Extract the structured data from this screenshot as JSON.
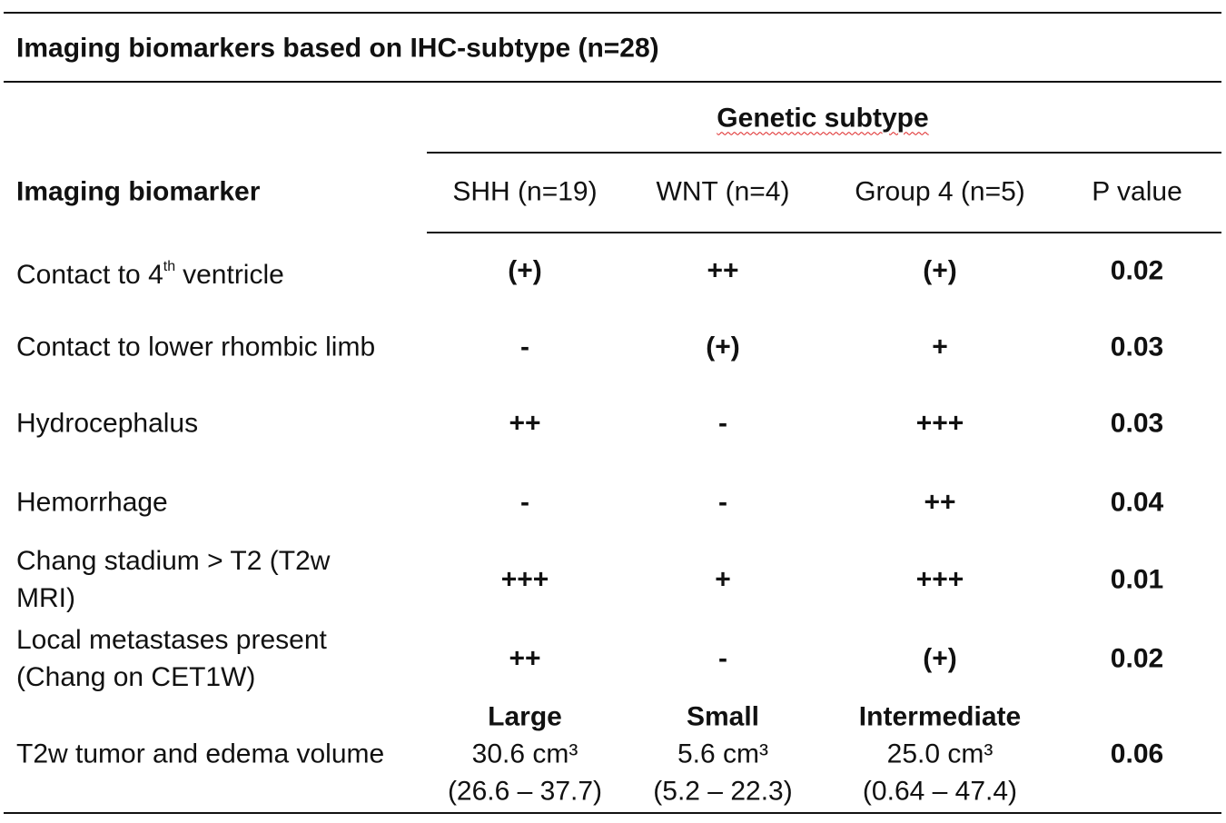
{
  "title": "Imaging biomarkers based on IHC-subtype (n=28)",
  "group_header": "Genetic subtype",
  "columns": [
    "Imaging biomarker",
    "SHH (n=19)",
    "WNT (n=4)",
    "Group 4 (n=5)",
    "P value"
  ],
  "rows": [
    {
      "label": [
        "Contact to 4"
      ],
      "label_sup": "th",
      "label_after": "ventricle",
      "cells": [
        "(+)",
        "++",
        "(+)",
        "0.02"
      ]
    },
    {
      "label": [
        "Contact to lower rhombic limb"
      ],
      "cells": [
        "-",
        "(+)",
        "+",
        "0.03"
      ]
    },
    {
      "label": [
        "Hydrocephalus"
      ],
      "cells": [
        "++",
        "-",
        "+++",
        "0.03"
      ]
    },
    {
      "label": [
        "Hemorrhage"
      ],
      "cells": [
        "-",
        "-",
        "++",
        "0.04"
      ]
    },
    {
      "label": [
        "Chang stadium > T2 (T2w",
        "MRI)"
      ],
      "cells": [
        "+++",
        "+",
        "+++",
        "0.01"
      ]
    },
    {
      "label": [
        "Local metastases present",
        "(Chang on CET1W)"
      ],
      "cells": [
        "++",
        "-",
        "(+)",
        "0.02"
      ]
    },
    {
      "label": [
        "T2w tumor and edema volume"
      ],
      "cells": [
        [
          "Large",
          "30.6 cm³",
          "(26.6 – 37.7)"
        ],
        [
          "Small",
          "5.6 cm³",
          "(5.2 – 22.3)"
        ],
        [
          "Intermediate",
          "25.0 cm³",
          "(0.64 – 47.4)"
        ],
        "0.06"
      ]
    }
  ]
}
